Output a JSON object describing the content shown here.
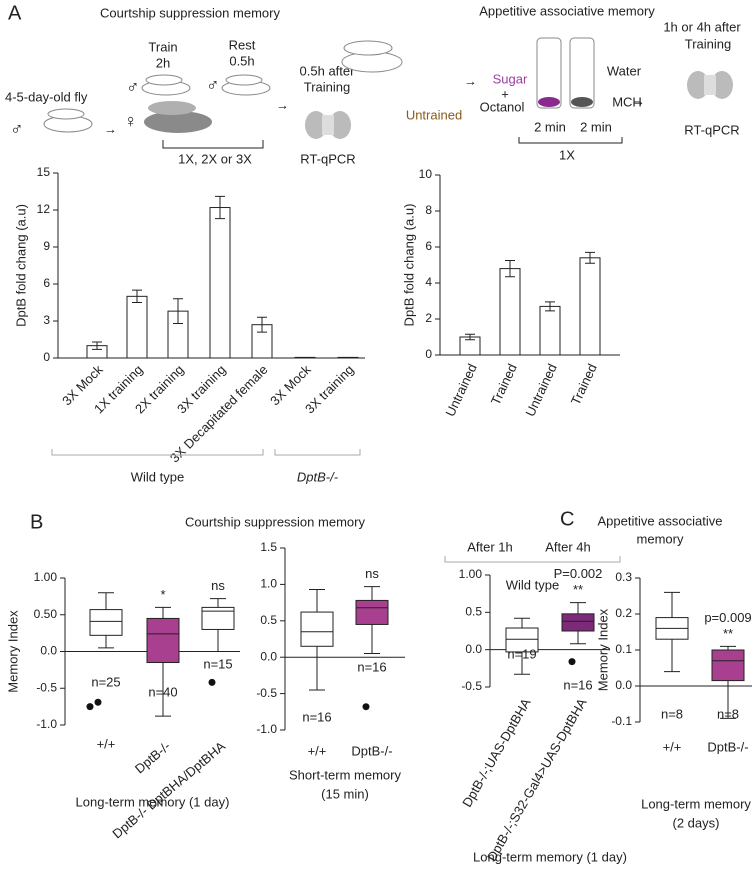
{
  "panels": {
    "A": {
      "letter": "A",
      "left": {
        "title": "Courtship suppression memory",
        "fly_age": "4-5-day-old fly",
        "male1": "♂",
        "male2": "♂",
        "male3": "♂",
        "female": "♀",
        "train": "Train",
        "train_time": "2h",
        "rest": "Rest",
        "rest_time": "0.5h",
        "after1": "0.5h after",
        "after2": "Training",
        "repeat": "1X, 2X or 3X",
        "assay": "RT-qPCR"
      },
      "right": {
        "title": "Appetitive associative memory",
        "untrained": "Untrained",
        "sugar": "Sugar",
        "plus": "+",
        "octanol": "Octanol",
        "water": "Water",
        "mch": "MCH",
        "time1": "2 min",
        "time2": "2 min",
        "repeat": "1X",
        "after1": "1h or 4h after",
        "after2": "Training",
        "assay": "RT-qPCR"
      }
    },
    "B": {
      "letter": "B",
      "title": "Courtship suppression memory"
    },
    "C": {
      "letter": "C",
      "title_lines": [
        "Appetitive associative",
        "memory"
      ]
    }
  },
  "chart_data": [
    {
      "type": "bar",
      "y_label": "DptB  fold chang (a.u)",
      "categories": [
        "3X Mock",
        "1X training",
        "2X training",
        "3X training",
        "3X Decapitated female",
        "3X Mock",
        "3X training"
      ],
      "values": [
        1.0,
        5.0,
        3.8,
        12.2,
        2.7,
        0.05,
        0.05
      ],
      "errors": [
        0.3,
        0.5,
        1.0,
        0.9,
        0.6,
        0,
        0
      ],
      "color": "#ffffff",
      "ylim": [
        0,
        15
      ],
      "yticks": [
        0,
        3,
        6,
        9,
        12,
        15
      ],
      "groups": [
        {
          "label": "Wild type",
          "italic": false
        },
        {
          "label": "DptB-/-",
          "italic": true
        }
      ]
    },
    {
      "type": "bar",
      "y_label": "DptB  fold chang (a.u)",
      "categories": [
        "Untrained",
        "Trained",
        "Untrained",
        "Trained"
      ],
      "values": [
        1.0,
        4.8,
        2.7,
        5.4
      ],
      "errors": [
        0.15,
        0.45,
        0.25,
        0.3
      ],
      "color": "#ffffff",
      "ylim": [
        0,
        10
      ],
      "yticks": [
        0,
        2,
        4,
        6,
        8,
        10
      ],
      "groups": [
        {
          "label": "After 1h",
          "italic": false
        },
        {
          "label": "After 4h",
          "italic": false
        },
        {
          "label": "Wild type",
          "italic": false
        }
      ]
    },
    {
      "type": "box",
      "y_label": "Memory Index",
      "x_label_lines": [
        "Long-term memory (1 day)"
      ],
      "categories": [
        "+/+",
        "DptB-/-",
        "DptB-/- DptBHA/DptBHA"
      ],
      "ylim": [
        -1,
        1
      ],
      "yticks": [
        {
          "value": -1,
          "label": "-1.0"
        },
        {
          "value": -0.5,
          "label": "-0.5"
        },
        {
          "value": 0,
          "label": "0.0"
        },
        {
          "value": 0.5,
          "label": "0.50"
        },
        {
          "value": 1,
          "label": "1.00"
        }
      ],
      "boxes": [
        {
          "whisker_low": 0.05,
          "q1": 0.22,
          "median": 0.41,
          "q3": 0.57,
          "whisker_high": 0.8,
          "outliers": [
            -0.75,
            -0.69
          ],
          "color": "#ffffff",
          "n_label": "n=25",
          "annotations": []
        },
        {
          "whisker_low": -0.88,
          "q1": -0.15,
          "median": 0.24,
          "q3": 0.45,
          "whisker_high": 0.6,
          "outliers": [],
          "color": "#a8408f",
          "n_label": "n=40",
          "annotations": [
            "*"
          ]
        },
        {
          "whisker_low": 0.0,
          "q1": 0.3,
          "median": 0.55,
          "q3": 0.6,
          "whisker_high": 0.72,
          "outliers": [
            -0.42
          ],
          "color": "#ffffff",
          "n_label": "n=15",
          "annotations": [
            "ns"
          ]
        }
      ]
    },
    {
      "type": "box",
      "x_label_lines": [
        "Short-term memory",
        "(15 min)"
      ],
      "categories": [
        "+/+",
        "DptB-/-"
      ],
      "ylim": [
        -1,
        1.5
      ],
      "yticks": [
        {
          "value": -1,
          "label": "-1.0"
        },
        -0.5,
        {
          "value": 0,
          "label": "0.0"
        },
        0.5,
        {
          "value": 1,
          "label": "1.0"
        },
        1.5
      ],
      "boxes": [
        {
          "whisker_low": -0.45,
          "q1": 0.15,
          "median": 0.35,
          "q3": 0.62,
          "whisker_high": 0.93,
          "outliers": [],
          "color": "#ffffff",
          "n_label": "n=16",
          "annotations": []
        },
        {
          "whisker_low": 0.05,
          "q1": 0.45,
          "median": 0.68,
          "q3": 0.78,
          "whisker_high": 0.97,
          "outliers": [
            -0.68
          ],
          "color": "#a8408f",
          "n_label": "n=16",
          "annotations": [
            "ns"
          ]
        }
      ]
    },
    {
      "type": "box",
      "x_label_lines": [
        "Long-term memory (1 day)"
      ],
      "categories": [
        "DptB-/-;UAS-DptBHA",
        "DptB-/-;S32-Gal4>UAS-DptBHA"
      ],
      "ylim": [
        -0.5,
        1
      ],
      "yticks": [
        -0.5,
        {
          "value": 0,
          "label": "0.0"
        },
        0.5,
        {
          "value": 1,
          "label": "1.00"
        }
      ],
      "boxes": [
        {
          "whisker_low": -0.33,
          "q1": -0.03,
          "median": 0.14,
          "q3": 0.29,
          "whisker_high": 0.42,
          "outliers": [],
          "color": "#ffffff",
          "n_label": "n=19",
          "annotations": []
        },
        {
          "whisker_low": 0.08,
          "q1": 0.25,
          "median": 0.38,
          "q3": 0.48,
          "whisker_high": 0.63,
          "outliers": [
            -0.16
          ],
          "color": "#7d2a7a",
          "n_label": "n=16",
          "annotations": [
            "**",
            "P=0.002"
          ]
        }
      ]
    },
    {
      "type": "box",
      "y_label": "Memory Index",
      "x_label_lines": [
        "Long-term memory",
        "(2 days)"
      ],
      "categories": [
        "+/+",
        "DptB-/-"
      ],
      "ylim": [
        -0.1,
        0.3
      ],
      "yticks": [
        -0.1,
        {
          "value": 0,
          "label": "0.0"
        },
        0.1,
        0.2,
        0.3
      ],
      "boxes": [
        {
          "whisker_low": 0.04,
          "q1": 0.13,
          "median": 0.16,
          "q3": 0.19,
          "whisker_high": 0.26,
          "outliers": [],
          "color": "#ffffff",
          "n_label": "n=8",
          "annotations": []
        },
        {
          "whisker_low": -0.09,
          "q1": 0.015,
          "median": 0.07,
          "q3": 0.1,
          "whisker_high": 0.11,
          "outliers": [],
          "color": "#a8408f",
          "n_label": "n=8",
          "annotations": [
            "**",
            "p=0.009"
          ]
        }
      ]
    }
  ]
}
